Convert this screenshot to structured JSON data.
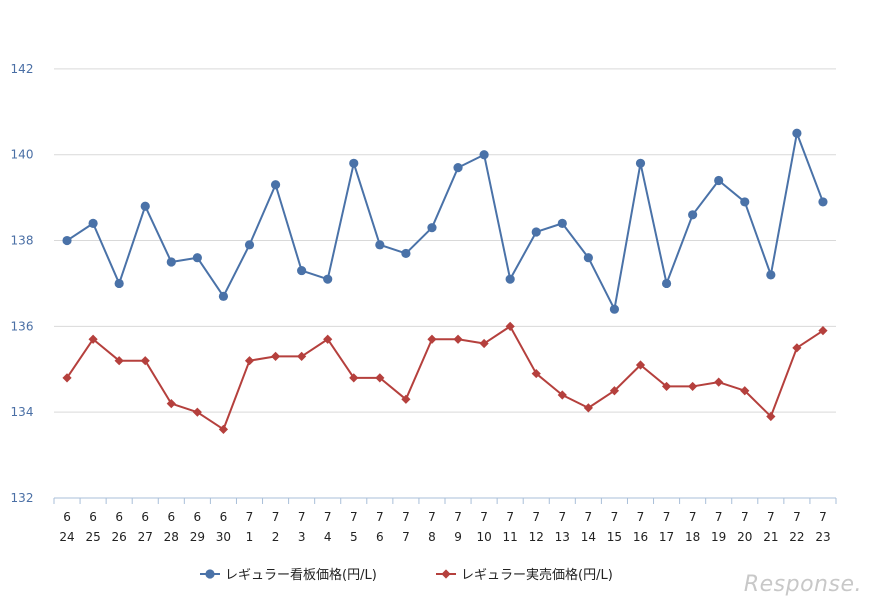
{
  "chart_data": {
    "type": "line",
    "x_month": [
      "6",
      "6",
      "6",
      "6",
      "6",
      "6",
      "6",
      "7",
      "7",
      "7",
      "7",
      "7",
      "7",
      "7",
      "7",
      "7",
      "7",
      "7",
      "7",
      "7",
      "7",
      "7",
      "7",
      "7",
      "7",
      "7",
      "7",
      "7",
      "7",
      "7"
    ],
    "x_day": [
      "24",
      "25",
      "26",
      "27",
      "28",
      "29",
      "30",
      "1",
      "2",
      "3",
      "4",
      "5",
      "6",
      "7",
      "8",
      "9",
      "10",
      "11",
      "12",
      "13",
      "14",
      "15",
      "16",
      "17",
      "18",
      "19",
      "20",
      "21",
      "22",
      "23"
    ],
    "ylim": [
      132,
      143
    ],
    "yticks": [
      "132",
      "134",
      "136",
      "138",
      "140",
      "142"
    ],
    "grid": true,
    "legend_position": "bottom",
    "series": [
      {
        "name": "レギュラー看板価格(円/L)",
        "color": "#4a72a8",
        "marker": "circle",
        "values": [
          138.0,
          138.4,
          137.0,
          138.8,
          137.5,
          137.6,
          136.7,
          137.9,
          139.3,
          137.3,
          137.1,
          139.8,
          137.9,
          137.7,
          138.3,
          139.7,
          140.0,
          137.1,
          138.2,
          138.4,
          137.6,
          136.4,
          139.8,
          137.0,
          138.6,
          139.4,
          138.9,
          137.2,
          140.5,
          138.9
        ]
      },
      {
        "name": "レギュラー実売価格(円/L)",
        "color": "#b5403d",
        "marker": "diamond",
        "values": [
          134.8,
          135.7,
          135.2,
          135.2,
          134.2,
          134.0,
          133.6,
          135.2,
          135.3,
          135.3,
          135.7,
          134.8,
          134.8,
          134.3,
          135.7,
          135.7,
          135.6,
          136.0,
          134.9,
          134.4,
          134.1,
          134.5,
          135.1,
          134.6,
          134.6,
          134.7,
          134.5,
          133.9,
          135.5,
          135.9
        ]
      }
    ]
  },
  "watermark": "Response."
}
